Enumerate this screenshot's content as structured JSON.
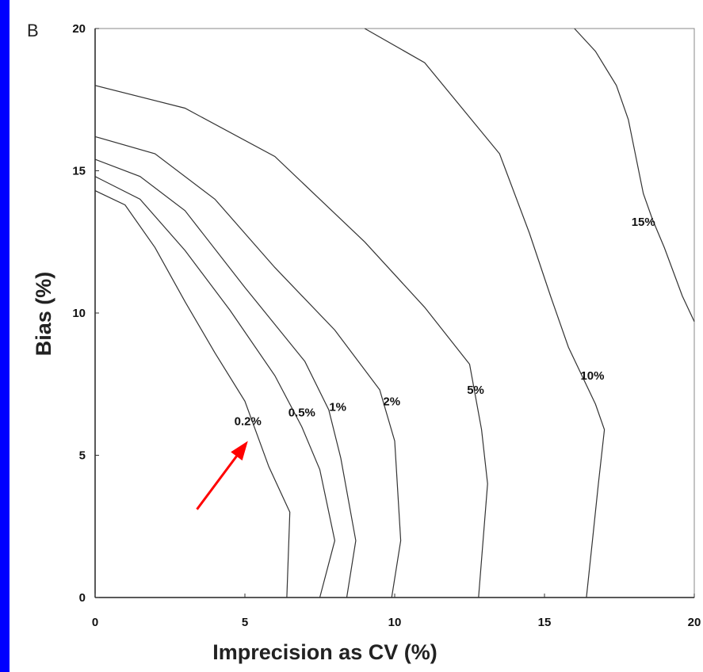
{
  "panel_letter": "B",
  "chart_data": {
    "type": "line",
    "subtype": "contour",
    "title": "",
    "xlabel": "Imprecision as CV (%)",
    "ylabel": "Bias (%)",
    "xlim": [
      0,
      20
    ],
    "ylim": [
      0,
      20
    ],
    "xticks": [
      0,
      5,
      10,
      15,
      20
    ],
    "yticks": [
      0,
      5,
      10,
      15,
      20
    ],
    "xtick_labels": [
      "0",
      "5",
      "10",
      "15",
      "20"
    ],
    "ytick_labels": [
      "0",
      "5",
      "10",
      "15",
      "20"
    ],
    "grid": false,
    "series": [
      {
        "name": "0.2%",
        "label_at": [
          5.1,
          6.2
        ],
        "points": [
          [
            0,
            14.3
          ],
          [
            1,
            13.8
          ],
          [
            2,
            12.3
          ],
          [
            3,
            10.4
          ],
          [
            4,
            8.6
          ],
          [
            5,
            6.9
          ],
          [
            5.8,
            4.6
          ],
          [
            6.5,
            3.0
          ],
          [
            6.4,
            0
          ]
        ]
      },
      {
        "name": "0.5%",
        "label_at": [
          6.9,
          6.5
        ],
        "points": [
          [
            0,
            14.8
          ],
          [
            1.5,
            14.0
          ],
          [
            3,
            12.2
          ],
          [
            4.5,
            10.1
          ],
          [
            6,
            7.8
          ],
          [
            6.9,
            6.0
          ],
          [
            7.5,
            4.5
          ],
          [
            8.0,
            2.0
          ],
          [
            7.5,
            0
          ]
        ]
      },
      {
        "name": "1%",
        "label_at": [
          8.1,
          6.7
        ],
        "points": [
          [
            0,
            15.4
          ],
          [
            1.5,
            14.8
          ],
          [
            3,
            13.6
          ],
          [
            5,
            10.9
          ],
          [
            7,
            8.3
          ],
          [
            7.8,
            6.6
          ],
          [
            8.2,
            4.9
          ],
          [
            8.7,
            2.0
          ],
          [
            8.4,
            0
          ]
        ]
      },
      {
        "name": "2%",
        "label_at": [
          9.9,
          6.9
        ],
        "points": [
          [
            0,
            16.2
          ],
          [
            2,
            15.6
          ],
          [
            4,
            14.0
          ],
          [
            6,
            11.6
          ],
          [
            8,
            9.4
          ],
          [
            9.5,
            7.3
          ],
          [
            10.0,
            5.5
          ],
          [
            10.2,
            2.0
          ],
          [
            9.9,
            0
          ]
        ]
      },
      {
        "name": "5%",
        "label_at": [
          12.7,
          7.3
        ],
        "points": [
          [
            0,
            18.0
          ],
          [
            3,
            17.2
          ],
          [
            6,
            15.5
          ],
          [
            9,
            12.5
          ],
          [
            11,
            10.2
          ],
          [
            12.5,
            8.2
          ],
          [
            12.9,
            5.9
          ],
          [
            13.1,
            4.0
          ],
          [
            12.8,
            0
          ]
        ]
      },
      {
        "name": "10%",
        "label_at": [
          16.6,
          7.8
        ],
        "points": [
          [
            9,
            20
          ],
          [
            11,
            18.8
          ],
          [
            13.5,
            15.6
          ],
          [
            14.5,
            12.8
          ],
          [
            15.2,
            10.6
          ],
          [
            15.8,
            8.8
          ],
          [
            16.7,
            6.8
          ],
          [
            17.0,
            5.9
          ],
          [
            16.8,
            4.0
          ],
          [
            16.6,
            2.0
          ],
          [
            16.4,
            0
          ]
        ]
      },
      {
        "name": "15%",
        "label_at": [
          18.3,
          13.2
        ],
        "points": [
          [
            16,
            20
          ],
          [
            16.7,
            19.2
          ],
          [
            17.4,
            18.0
          ],
          [
            17.8,
            16.8
          ],
          [
            18.3,
            14.2
          ],
          [
            18.6,
            13.3
          ],
          [
            19.0,
            12.3
          ],
          [
            19.6,
            10.6
          ],
          [
            20,
            9.7
          ]
        ]
      }
    ],
    "annotations": [
      {
        "type": "arrow",
        "color": "#ff0000",
        "from": [
          3.4,
          3.1
        ],
        "to": [
          5.1,
          5.5
        ]
      }
    ]
  }
}
